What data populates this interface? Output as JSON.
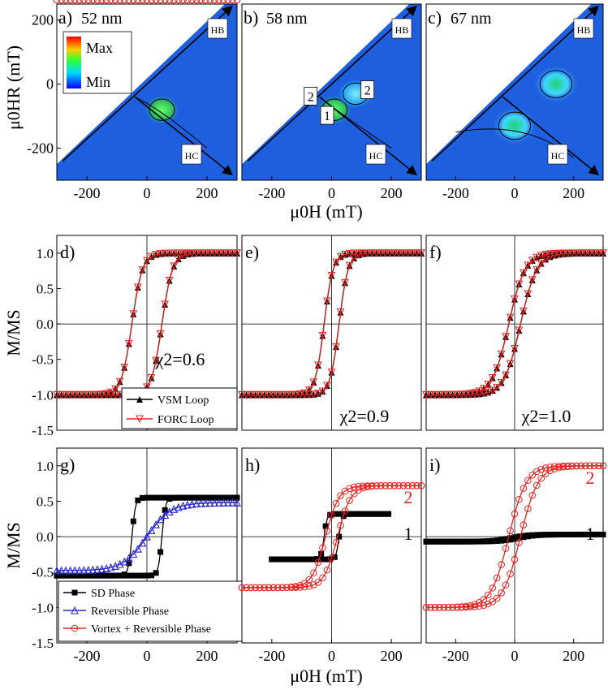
{
  "chart_data": [
    {
      "panel": "a)",
      "type": "heatmap",
      "subtitle": "52 nm",
      "xlim": [
        -300,
        300
      ],
      "ylim": [
        -300,
        250
      ],
      "xticks": [
        -200,
        0,
        200
      ],
      "yticks": [
        -200,
        0,
        200
      ],
      "axis_labels": [
        "HB",
        "HC"
      ],
      "colorbar": {
        "max_label": "Max",
        "min_label": "Min"
      },
      "features": [
        {
          "x": 50,
          "y": -80,
          "intensity": "high",
          "label": ""
        }
      ]
    },
    {
      "panel": "b)",
      "type": "heatmap",
      "subtitle": "58 nm",
      "xlim": [
        -300,
        300
      ],
      "ylim": [
        -300,
        250
      ],
      "xticks": [
        -200,
        0,
        200
      ],
      "yticks": [
        -200,
        0,
        200
      ],
      "axis_labels": [
        "HB",
        "HC"
      ],
      "region_labels": [
        "1",
        "2",
        "2"
      ],
      "features": [
        {
          "x": 10,
          "y": -80,
          "intensity": "high",
          "label": "1"
        },
        {
          "x": 80,
          "y": -30,
          "intensity": "medium",
          "label": "2"
        }
      ]
    },
    {
      "panel": "c)",
      "type": "heatmap",
      "subtitle": "67 nm",
      "xlim": [
        -300,
        300
      ],
      "ylim": [
        -300,
        250
      ],
      "xticks": [
        -200,
        0,
        200
      ],
      "yticks": [
        -200,
        0,
        200
      ],
      "axis_labels": [
        "HB",
        "HC"
      ],
      "features": [
        {
          "x": 0,
          "y": -130,
          "intensity": "medium",
          "label": ""
        },
        {
          "x": 140,
          "y": 0,
          "intensity": "medium",
          "label": ""
        }
      ]
    },
    {
      "panel": "d)",
      "type": "line",
      "xlim": [
        -300,
        300
      ],
      "ylim": [
        -1.5,
        1.25
      ],
      "yticks": [
        -1.5,
        -1.0,
        -0.5,
        0.0,
        0.5,
        1.0
      ],
      "annotation": "χ2=0.6",
      "coercivity": 50,
      "width": 35,
      "series": [
        {
          "name": "VSM Loop",
          "color": "#000000",
          "marker": "triangle-up"
        },
        {
          "name": "FORC Loop",
          "color": "#e8231f",
          "marker": "triangle-down"
        }
      ]
    },
    {
      "panel": "e)",
      "type": "line",
      "xlim": [
        -300,
        300
      ],
      "ylim": [
        -1.5,
        1.25
      ],
      "annotation": "χ2=0.9",
      "coercivity": 25,
      "width": 30,
      "series": [
        {
          "name": "VSM Loop",
          "color": "#000000",
          "marker": "triangle-up"
        },
        {
          "name": "FORC Loop",
          "color": "#e8231f",
          "marker": "triangle-down"
        }
      ]
    },
    {
      "panel": "f)",
      "type": "line",
      "xlim": [
        -300,
        300
      ],
      "ylim": [
        -1.5,
        1.25
      ],
      "annotation": "χ2=1.0",
      "coercivity": 20,
      "width": 55,
      "series": [
        {
          "name": "VSM Loop",
          "color": "#000000",
          "marker": "triangle-up"
        },
        {
          "name": "FORC Loop",
          "color": "#e8231f",
          "marker": "triangle-down"
        }
      ]
    },
    {
      "panel": "g)",
      "type": "line",
      "xlim": [
        -300,
        300
      ],
      "ylim": [
        -1.5,
        1.25
      ],
      "yticks": [
        -1.5,
        -1.0,
        -0.5,
        0.0,
        0.5,
        1.0
      ],
      "xticks": [
        -200,
        0,
        200
      ],
      "series": [
        {
          "name": "SD Phase",
          "color": "#000000",
          "marker": "square",
          "hc": 50,
          "w": 12,
          "ms": 0.55
        },
        {
          "name": "Reversible Phase",
          "color": "#2b2bd6",
          "marker": "triangle-up-open",
          "anhysteretic": true,
          "a": 80,
          "ms": 0.48
        },
        {
          "name": "Vortex + Reversible Phase",
          "color": "#e8231f",
          "marker": "circle-open"
        }
      ]
    },
    {
      "panel": "h)",
      "type": "line",
      "xlim": [
        -300,
        300
      ],
      "ylim": [
        -1.5,
        1.25
      ],
      "xticks": [
        -200,
        0,
        200
      ],
      "curve_labels": [
        "2",
        "1"
      ],
      "series": [
        {
          "name": "SD Phase",
          "color": "#000000",
          "hc": 25,
          "w": 10,
          "ms": 0.32,
          "xrange": [
            -200,
            200
          ]
        },
        {
          "name": "Vortex + Reversible Phase",
          "color": "#e8231f",
          "hc": 20,
          "w": 45,
          "ms": 0.72
        }
      ]
    },
    {
      "panel": "i)",
      "type": "line",
      "xlim": [
        -300,
        300
      ],
      "ylim": [
        -1.5,
        1.25
      ],
      "xticks": [
        -200,
        0,
        200
      ],
      "curve_labels": [
        "2",
        "1"
      ],
      "series": [
        {
          "name": "SD Phase",
          "color": "#000000",
          "hc": 15,
          "w": 60,
          "ms": 0.05,
          "offset": -0.02
        },
        {
          "name": "Vortex + Reversible Phase",
          "color": "#e8231f",
          "hc": 20,
          "w": 60,
          "ms": 1.0
        }
      ]
    }
  ],
  "labels": {
    "forc_ylabel": "μ0HR (mT)",
    "forc_xlabel": "μ0H (mT)",
    "mid_ylabel": "M/MS",
    "bottom_ylabel": "M/MS",
    "bottom_xlabel": "μ0H (mT)"
  },
  "colors": {
    "map_background": "#1e5fe0",
    "heat_high": "#34b848",
    "heat_mid": "#00c8ff"
  }
}
